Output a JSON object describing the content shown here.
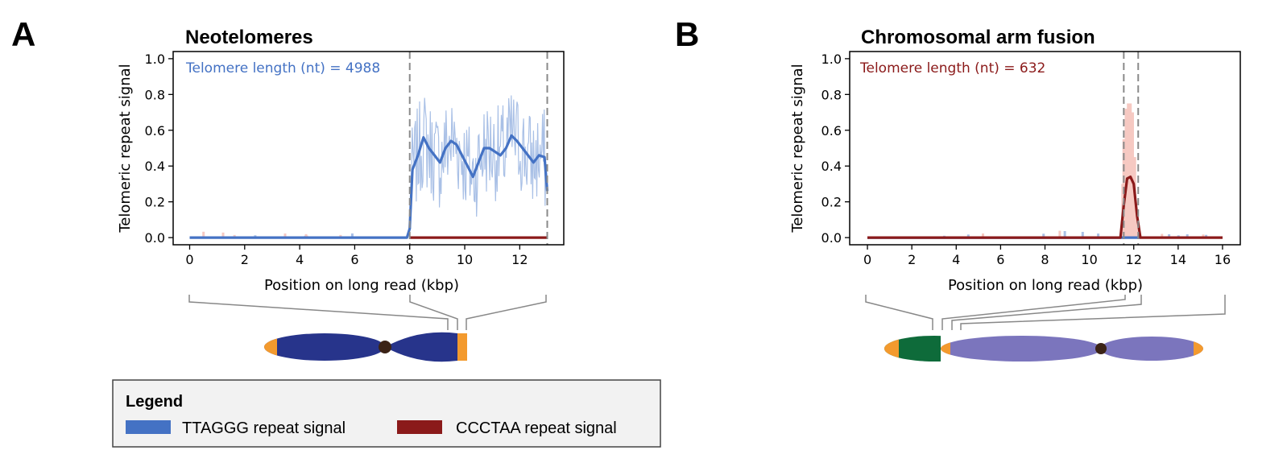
{
  "panels": [
    {
      "letter": "A",
      "title": "Neotelomeres",
      "annotation": "Telomere length (nt) = 4988",
      "annotation_color": "#4472c4"
    },
    {
      "letter": "B",
      "title": "Chromosomal arm fusion",
      "annotation": "Telomere length (nt) = 632",
      "annotation_color": "#8b1a1a"
    }
  ],
  "legend": {
    "title": "Legend",
    "items": [
      {
        "label": "TTAGGG repeat signal",
        "color": "#4472c4"
      },
      {
        "label": "CCCTAA repeat signal",
        "color": "#8b1a1a"
      }
    ]
  },
  "colors": {
    "ttaggg": "#4472c4",
    "ttaggg_light": "#a9c0e6",
    "ccctaa": "#8b1a1a",
    "ccctaa_light": "#f6c9c2",
    "telomere": "#f39a2e",
    "centromere": "#3b2316",
    "chrom_A": "#27348b",
    "chrom_B_fused_arm": "#0e6b3a",
    "chrom_B": "#7b75bd",
    "cut_line": "#888888"
  },
  "chart_data": [
    {
      "type": "line",
      "title": "Neotelomeres",
      "xlabel": "Position on long read (kbp)",
      "ylabel": "Telomeric repeat signal",
      "xlim": [
        -0.6,
        13.6
      ],
      "ylim": [
        -0.04,
        1.04
      ],
      "xticks": [
        0,
        2,
        4,
        6,
        8,
        10,
        12
      ],
      "yticks": [
        "0.0",
        "0.2",
        "0.4",
        "0.6",
        "0.8",
        "1.0"
      ],
      "dashed_lines_x": [
        8.0,
        13.0
      ],
      "legend": "none",
      "grid": false,
      "series": [
        {
          "color_key": "ttaggg",
          "x": [
            0,
            7.9,
            8.0,
            8.1,
            8.3,
            8.5,
            8.7,
            8.9,
            9.1,
            9.3,
            9.5,
            9.7,
            9.9,
            10.1,
            10.3,
            10.5,
            10.7,
            10.9,
            11.1,
            11.3,
            11.5,
            11.7,
            11.9,
            12.1,
            12.3,
            12.5,
            12.7,
            12.9,
            13.0
          ],
          "y": [
            0.0,
            0.0,
            0.05,
            0.38,
            0.46,
            0.56,
            0.5,
            0.46,
            0.42,
            0.5,
            0.54,
            0.52,
            0.46,
            0.4,
            0.34,
            0.42,
            0.5,
            0.5,
            0.48,
            0.46,
            0.5,
            0.57,
            0.54,
            0.5,
            0.46,
            0.42,
            0.46,
            0.45,
            0.26
          ]
        },
        {
          "color_key": "ccctaa",
          "x": [
            8.0,
            13.0
          ],
          "y": [
            0.0,
            0.0
          ]
        }
      ]
    },
    {
      "type": "line",
      "title": "Chromosomal arm fusion",
      "xlabel": "Position on long read (kbp)",
      "ylabel": "Telomeric repeat signal",
      "xlim": [
        -0.8,
        16.8
      ],
      "ylim": [
        -0.04,
        1.04
      ],
      "xticks": [
        0,
        2,
        4,
        6,
        8,
        10,
        12,
        14,
        16
      ],
      "yticks": [
        "0.0",
        "0.2",
        "0.4",
        "0.6",
        "0.8",
        "1.0"
      ],
      "dashed_lines_x": [
        11.55,
        12.2
      ],
      "legend": "none",
      "grid": false,
      "series": [
        {
          "color_key": "ttaggg",
          "x": [
            0,
            11.5,
            12.3
          ],
          "y": [
            0.0,
            0.0,
            0.0
          ]
        },
        {
          "color_key": "ccctaa",
          "x": [
            0,
            11.4,
            11.55,
            11.7,
            11.85,
            12.0,
            12.15,
            12.3,
            16
          ],
          "y": [
            0.0,
            0.0,
            0.18,
            0.33,
            0.34,
            0.3,
            0.12,
            0.0,
            0.0
          ]
        }
      ]
    }
  ]
}
